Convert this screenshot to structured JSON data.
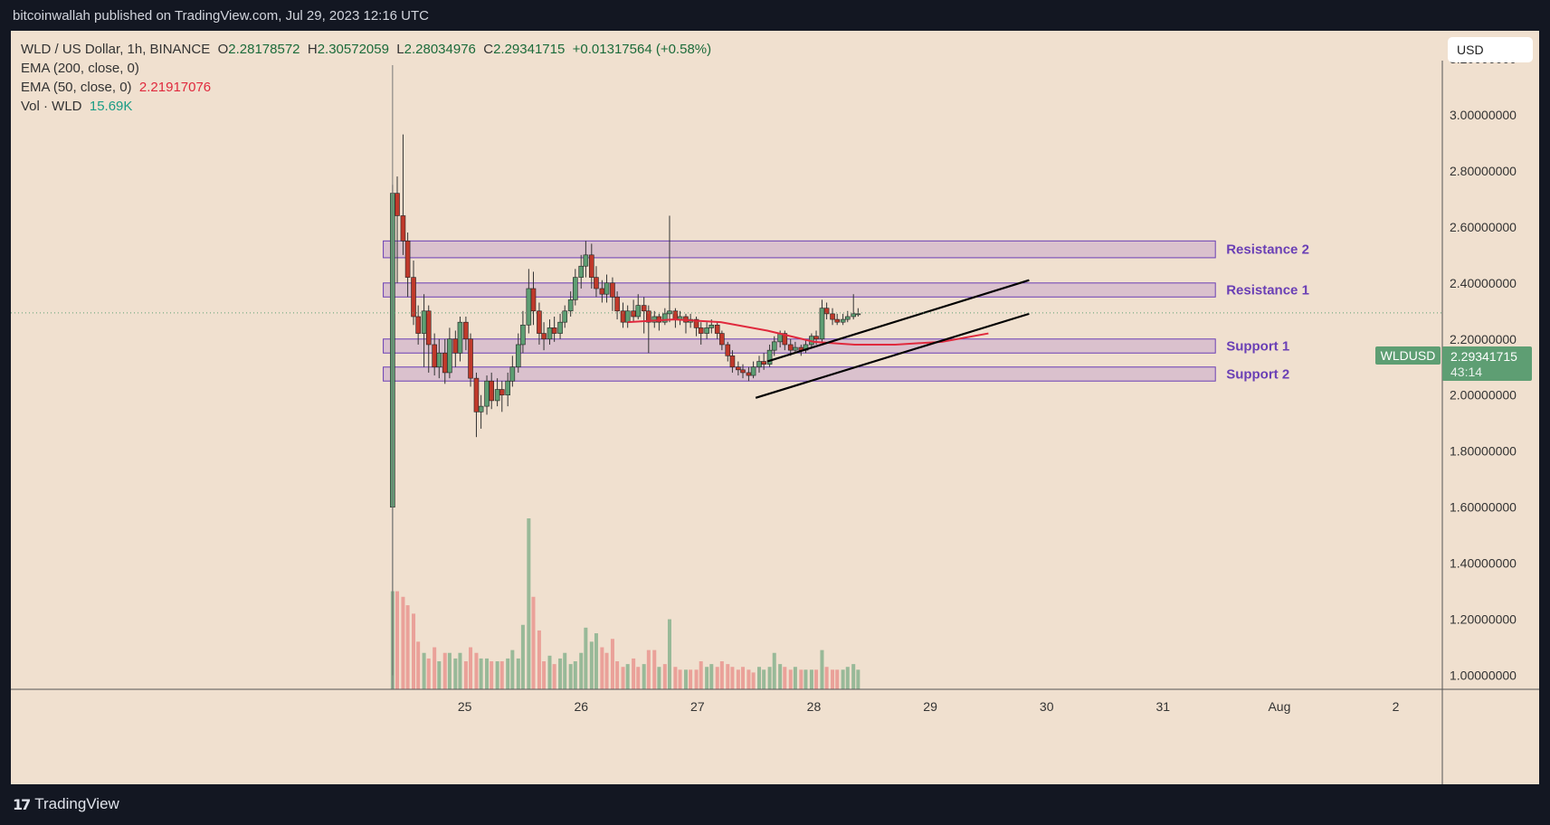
{
  "header": {
    "published_text": "bitcoinwallah published on TradingView.com, Jul 29, 2023 12:16 UTC"
  },
  "legend": {
    "symbol": "WLD / US Dollar, 1h, BINANCE",
    "open_label": "O",
    "open": "2.28178572",
    "high_label": "H",
    "high": "2.30572059",
    "low_label": "L",
    "low": "2.28034976",
    "close_label": "C",
    "close": "2.29341715",
    "change": "+0.01317564 (+0.58%)",
    "ema200": "EMA (200, close, 0)",
    "ema50": "EMA (50, close, 0)",
    "ema50_value": "2.21917076",
    "vol": "Vol · WLD",
    "vol_value": "15.69K"
  },
  "currency_button": "USD",
  "price_tag": {
    "symbol": "WLDUSD",
    "price": "2.29341715",
    "countdown": "43:14"
  },
  "footer": {
    "brand": "TradingView"
  },
  "colors": {
    "background": "#f0e0cf",
    "up": "#5e9e73",
    "down": "#c0392b",
    "zone_stroke": "#6a3fb5",
    "ema": "#e0293d"
  },
  "chart_data": {
    "type": "candlestick",
    "title": "WLD / US Dollar, 1h, BINANCE",
    "x_ticks": [
      "25",
      "26",
      "27",
      "28",
      "29",
      "30",
      "31",
      "Aug",
      "2"
    ],
    "y_ticks": [
      "1.00000000",
      "1.20000000",
      "1.40000000",
      "1.60000000",
      "1.80000000",
      "2.00000000",
      "2.20000000",
      "2.40000000",
      "2.60000000",
      "2.80000000",
      "3.00000000",
      "3.20000000"
    ],
    "ylim": [
      0.95,
      3.3
    ],
    "xlim_days": [
      21.1,
      33.4
    ],
    "zones": [
      {
        "label": "Resistance 2",
        "from": 2.49,
        "to": 2.55
      },
      {
        "label": "Resistance 1",
        "from": 2.35,
        "to": 2.4
      },
      {
        "label": "Support 1",
        "from": 2.15,
        "to": 2.2
      },
      {
        "label": "Support 2",
        "from": 2.05,
        "to": 2.1
      }
    ],
    "channel": {
      "upper": [
        [
          27.6,
          2.12
        ],
        [
          29.85,
          2.41
        ]
      ],
      "lower": [
        [
          27.5,
          1.99
        ],
        [
          29.85,
          2.29
        ]
      ]
    },
    "ema50_points": [
      [
        26.4,
        2.26
      ],
      [
        26.8,
        2.27
      ],
      [
        27.2,
        2.26
      ],
      [
        27.6,
        2.23
      ],
      [
        28.0,
        2.19
      ],
      [
        28.35,
        2.18
      ],
      [
        28.7,
        2.18
      ],
      [
        29.1,
        2.19
      ],
      [
        29.5,
        2.22
      ]
    ],
    "last_price": 2.29341715,
    "candles": [
      [
        24.38,
        1.6,
        2.72,
        2.75,
        1.0
      ],
      [
        24.42,
        2.72,
        2.64,
        2.78,
        2.4
      ],
      [
        24.47,
        2.64,
        2.55,
        2.93,
        2.5
      ],
      [
        24.51,
        2.55,
        2.42,
        2.58,
        2.35
      ],
      [
        24.56,
        2.42,
        2.28,
        2.48,
        2.25
      ],
      [
        24.6,
        2.28,
        2.22,
        2.32,
        2.18
      ],
      [
        24.65,
        2.22,
        2.3,
        2.36,
        2.1
      ],
      [
        24.69,
        2.3,
        2.18,
        2.32,
        2.08
      ],
      [
        24.74,
        2.18,
        2.1,
        2.22,
        2.07
      ],
      [
        24.78,
        2.1,
        2.15,
        2.2,
        2.06
      ],
      [
        24.83,
        2.15,
        2.08,
        2.2,
        2.04
      ],
      [
        24.87,
        2.08,
        2.2,
        2.24,
        2.06
      ],
      [
        24.92,
        2.2,
        2.15,
        2.23,
        2.1
      ],
      [
        24.96,
        2.15,
        2.26,
        2.28,
        2.12
      ],
      [
        25.01,
        2.26,
        2.2,
        2.28,
        2.16
      ],
      [
        25.05,
        2.2,
        2.06,
        2.22,
        2.03
      ],
      [
        25.1,
        2.06,
        1.94,
        2.08,
        1.85
      ],
      [
        25.14,
        1.94,
        1.96,
        2.0,
        1.88
      ],
      [
        25.19,
        1.96,
        2.05,
        2.07,
        1.93
      ],
      [
        25.23,
        2.05,
        1.98,
        2.08,
        1.95
      ],
      [
        25.28,
        1.98,
        2.02,
        2.06,
        1.96
      ],
      [
        25.32,
        2.02,
        2.0,
        2.05,
        1.94
      ],
      [
        25.37,
        2.0,
        2.05,
        2.08,
        1.96
      ],
      [
        25.41,
        2.05,
        2.1,
        2.14,
        2.03
      ],
      [
        25.46,
        2.1,
        2.18,
        2.22,
        2.08
      ],
      [
        25.5,
        2.18,
        2.25,
        2.3,
        2.15
      ],
      [
        25.55,
        2.25,
        2.38,
        2.45,
        2.22
      ],
      [
        25.59,
        2.38,
        2.3,
        2.44,
        2.25
      ],
      [
        25.64,
        2.3,
        2.22,
        2.33,
        2.18
      ],
      [
        25.68,
        2.22,
        2.2,
        2.26,
        2.16
      ],
      [
        25.73,
        2.2,
        2.24,
        2.27,
        2.18
      ],
      [
        25.77,
        2.24,
        2.22,
        2.28,
        2.19
      ],
      [
        25.82,
        2.22,
        2.26,
        2.29,
        2.2
      ],
      [
        25.86,
        2.26,
        2.3,
        2.32,
        2.24
      ],
      [
        25.91,
        2.3,
        2.34,
        2.37,
        2.28
      ],
      [
        25.95,
        2.34,
        2.42,
        2.45,
        2.32
      ],
      [
        26.0,
        2.42,
        2.46,
        2.5,
        2.38
      ],
      [
        26.04,
        2.46,
        2.5,
        2.55,
        2.42
      ],
      [
        26.09,
        2.5,
        2.42,
        2.54,
        2.38
      ],
      [
        26.13,
        2.42,
        2.38,
        2.46,
        2.35
      ],
      [
        26.18,
        2.38,
        2.36,
        2.41,
        2.33
      ],
      [
        26.22,
        2.36,
        2.4,
        2.43,
        2.33
      ],
      [
        26.27,
        2.4,
        2.35,
        2.42,
        2.3
      ],
      [
        26.31,
        2.35,
        2.3,
        2.37,
        2.27
      ],
      [
        26.36,
        2.3,
        2.26,
        2.33,
        2.24
      ],
      [
        26.4,
        2.26,
        2.3,
        2.32,
        2.24
      ],
      [
        26.45,
        2.3,
        2.28,
        2.34,
        2.26
      ],
      [
        26.49,
        2.28,
        2.32,
        2.36,
        2.27
      ],
      [
        26.54,
        2.32,
        2.3,
        2.35,
        2.22
      ],
      [
        26.58,
        2.3,
        2.26,
        2.32,
        2.15
      ],
      [
        26.63,
        2.26,
        2.28,
        2.3,
        2.24
      ],
      [
        26.67,
        2.28,
        2.26,
        2.29,
        2.23
      ],
      [
        26.72,
        2.26,
        2.29,
        2.31,
        2.25
      ],
      [
        26.76,
        2.29,
        2.3,
        2.64,
        2.26
      ],
      [
        26.81,
        2.3,
        2.27,
        2.31,
        2.24
      ],
      [
        26.85,
        2.27,
        2.28,
        2.3,
        2.25
      ],
      [
        26.9,
        2.28,
        2.26,
        2.29,
        2.22
      ],
      [
        26.94,
        2.26,
        2.27,
        2.29,
        2.24
      ],
      [
        26.99,
        2.27,
        2.24,
        2.28,
        2.21
      ],
      [
        27.03,
        2.24,
        2.22,
        2.26,
        2.18
      ],
      [
        27.08,
        2.22,
        2.24,
        2.26,
        2.2
      ],
      [
        27.12,
        2.24,
        2.25,
        2.27,
        2.22
      ],
      [
        27.17,
        2.25,
        2.22,
        2.26,
        2.2
      ],
      [
        27.21,
        2.22,
        2.18,
        2.23,
        2.16
      ],
      [
        27.26,
        2.18,
        2.14,
        2.19,
        2.12
      ],
      [
        27.3,
        2.14,
        2.1,
        2.16,
        2.08
      ],
      [
        27.35,
        2.1,
        2.09,
        2.12,
        2.07
      ],
      [
        27.39,
        2.09,
        2.08,
        2.11,
        2.06
      ],
      [
        27.44,
        2.08,
        2.07,
        2.1,
        2.05
      ],
      [
        27.48,
        2.07,
        2.1,
        2.12,
        2.06
      ],
      [
        27.53,
        2.1,
        2.12,
        2.14,
        2.08
      ],
      [
        27.57,
        2.12,
        2.11,
        2.15,
        2.09
      ],
      [
        27.62,
        2.11,
        2.16,
        2.18,
        2.1
      ],
      [
        27.66,
        2.16,
        2.19,
        2.21,
        2.14
      ],
      [
        27.71,
        2.19,
        2.22,
        2.23,
        2.17
      ],
      [
        27.75,
        2.22,
        2.18,
        2.23,
        2.16
      ],
      [
        27.8,
        2.18,
        2.16,
        2.2,
        2.14
      ],
      [
        27.84,
        2.16,
        2.17,
        2.19,
        2.15
      ],
      [
        27.89,
        2.17,
        2.16,
        2.18,
        2.14
      ],
      [
        27.93,
        2.16,
        2.18,
        2.2,
        2.15
      ],
      [
        27.98,
        2.18,
        2.21,
        2.22,
        2.17
      ],
      [
        28.02,
        2.21,
        2.2,
        2.23,
        2.18
      ],
      [
        28.07,
        2.2,
        2.31,
        2.34,
        2.19
      ],
      [
        28.11,
        2.31,
        2.29,
        2.33,
        2.27
      ],
      [
        28.16,
        2.29,
        2.27,
        2.31,
        2.25
      ],
      [
        28.2,
        2.27,
        2.26,
        2.29,
        2.25
      ],
      [
        28.25,
        2.26,
        2.27,
        2.29,
        2.25
      ],
      [
        28.29,
        2.27,
        2.28,
        2.3,
        2.26
      ],
      [
        28.34,
        2.28,
        2.29,
        2.36,
        2.27
      ],
      [
        28.38,
        2.29,
        2.29,
        2.31,
        2.28
      ]
    ],
    "volume": [
      [
        24.38,
        1.3,
        1
      ],
      [
        24.42,
        1.3,
        0
      ],
      [
        24.47,
        1.28,
        0
      ],
      [
        24.51,
        1.25,
        0
      ],
      [
        24.56,
        1.22,
        0
      ],
      [
        24.6,
        1.12,
        0
      ],
      [
        24.65,
        1.08,
        1
      ],
      [
        24.69,
        1.06,
        0
      ],
      [
        24.74,
        1.1,
        0
      ],
      [
        24.78,
        1.05,
        1
      ],
      [
        24.83,
        1.08,
        0
      ],
      [
        24.87,
        1.08,
        1
      ],
      [
        24.92,
        1.06,
        1
      ],
      [
        24.96,
        1.08,
        1
      ],
      [
        25.01,
        1.05,
        0
      ],
      [
        25.05,
        1.1,
        0
      ],
      [
        25.1,
        1.08,
        0
      ],
      [
        25.14,
        1.06,
        1
      ],
      [
        25.19,
        1.06,
        1
      ],
      [
        25.23,
        1.05,
        0
      ],
      [
        25.28,
        1.05,
        1
      ],
      [
        25.32,
        1.05,
        0
      ],
      [
        25.37,
        1.06,
        1
      ],
      [
        25.41,
        1.09,
        1
      ],
      [
        25.46,
        1.06,
        1
      ],
      [
        25.5,
        1.18,
        1
      ],
      [
        25.55,
        1.56,
        1
      ],
      [
        25.59,
        1.28,
        0
      ],
      [
        25.64,
        1.16,
        0
      ],
      [
        25.68,
        1.05,
        0
      ],
      [
        25.73,
        1.07,
        1
      ],
      [
        25.77,
        1.04,
        0
      ],
      [
        25.82,
        1.06,
        1
      ],
      [
        25.86,
        1.08,
        1
      ],
      [
        25.91,
        1.04,
        1
      ],
      [
        25.95,
        1.05,
        1
      ],
      [
        26.0,
        1.08,
        1
      ],
      [
        26.04,
        1.17,
        1
      ],
      [
        26.09,
        1.12,
        1
      ],
      [
        26.13,
        1.15,
        1
      ],
      [
        26.18,
        1.1,
        0
      ],
      [
        26.22,
        1.08,
        0
      ],
      [
        26.27,
        1.13,
        0
      ],
      [
        26.31,
        1.05,
        0
      ],
      [
        26.36,
        1.03,
        0
      ],
      [
        26.4,
        1.04,
        1
      ],
      [
        26.45,
        1.06,
        0
      ],
      [
        26.49,
        1.03,
        0
      ],
      [
        26.54,
        1.04,
        1
      ],
      [
        26.58,
        1.09,
        0
      ],
      [
        26.63,
        1.09,
        0
      ],
      [
        26.67,
        1.03,
        1
      ],
      [
        26.72,
        1.04,
        0
      ],
      [
        26.76,
        1.2,
        1
      ],
      [
        26.81,
        1.03,
        0
      ],
      [
        26.85,
        1.02,
        0
      ],
      [
        26.9,
        1.02,
        1
      ],
      [
        26.94,
        1.02,
        0
      ],
      [
        26.99,
        1.02,
        0
      ],
      [
        27.03,
        1.05,
        0
      ],
      [
        27.08,
        1.03,
        1
      ],
      [
        27.12,
        1.04,
        1
      ],
      [
        27.17,
        1.03,
        0
      ],
      [
        27.21,
        1.05,
        0
      ],
      [
        27.26,
        1.04,
        0
      ],
      [
        27.3,
        1.03,
        0
      ],
      [
        27.35,
        1.02,
        0
      ],
      [
        27.39,
        1.03,
        0
      ],
      [
        27.44,
        1.02,
        0
      ],
      [
        27.48,
        1.01,
        0
      ],
      [
        27.53,
        1.03,
        1
      ],
      [
        27.57,
        1.02,
        1
      ],
      [
        27.62,
        1.03,
        1
      ],
      [
        27.66,
        1.08,
        1
      ],
      [
        27.71,
        1.04,
        1
      ],
      [
        27.75,
        1.03,
        0
      ],
      [
        27.8,
        1.02,
        0
      ],
      [
        27.84,
        1.03,
        1
      ],
      [
        27.89,
        1.02,
        0
      ],
      [
        27.93,
        1.02,
        1
      ],
      [
        27.98,
        1.02,
        1
      ],
      [
        28.02,
        1.02,
        0
      ],
      [
        28.07,
        1.09,
        1
      ],
      [
        28.11,
        1.03,
        0
      ],
      [
        28.16,
        1.02,
        0
      ],
      [
        28.2,
        1.02,
        0
      ],
      [
        28.25,
        1.02,
        1
      ],
      [
        28.29,
        1.03,
        1
      ],
      [
        28.34,
        1.04,
        1
      ],
      [
        28.38,
        1.02,
        1
      ]
    ]
  }
}
